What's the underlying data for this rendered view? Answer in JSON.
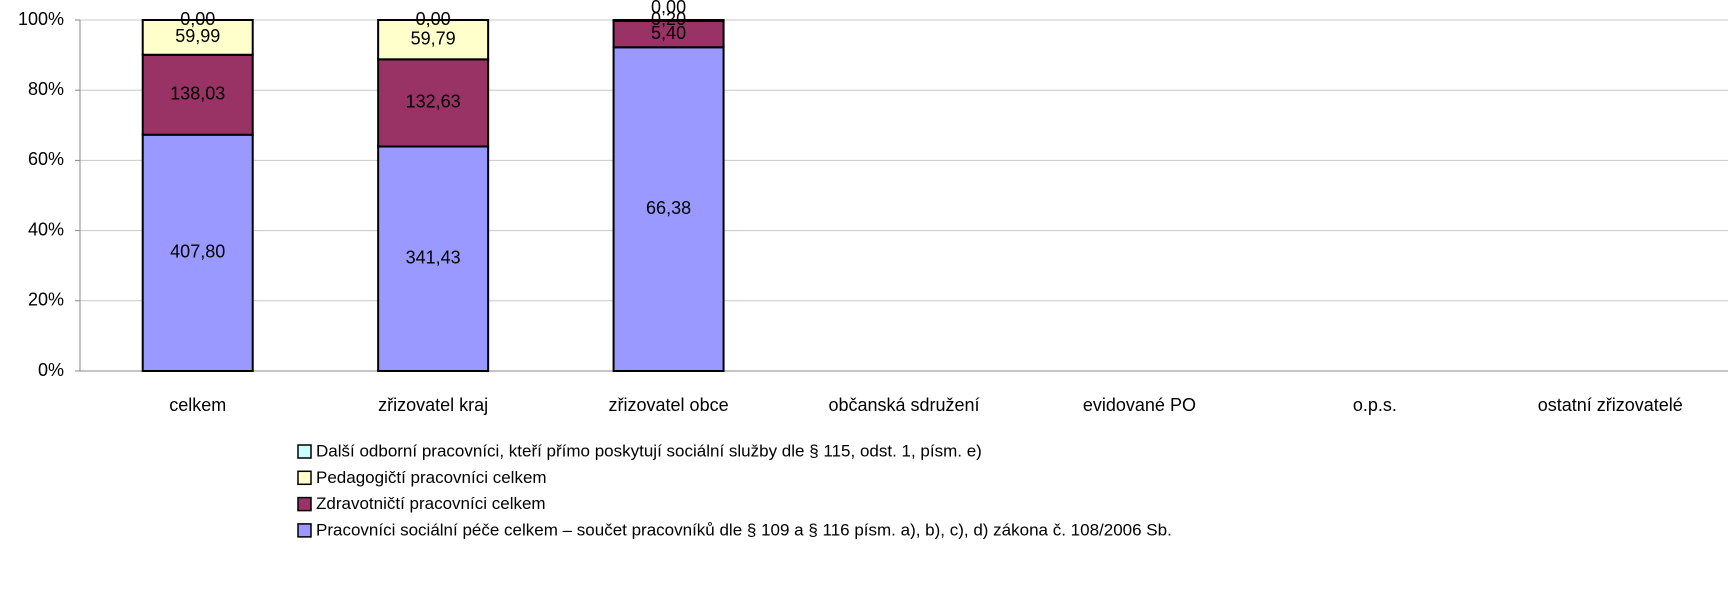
{
  "chart_data": {
    "type": "bar",
    "stacking": "percent",
    "categories": [
      "celkem",
      "zřizovatel kraj",
      "zřizovatel obce",
      "občanská sdružení",
      "evidované PO",
      "o.p.s.",
      "ostatní zřizovatelé"
    ],
    "series": [
      {
        "name": "Pracovníci sociální péče celkem – součet pracovníků dle § 109 a § 116 písm. a), b), c), d) zákona č. 108/2006 Sb.",
        "color": "#9999ff",
        "values": [
          407.8,
          341.43,
          66.38,
          null,
          null,
          null,
          null
        ],
        "value_labels": [
          "407,80",
          "341,43",
          "66,38",
          null,
          null,
          null,
          null
        ]
      },
      {
        "name": "Zdravotničtí pracovníci celkem",
        "color": "#993366",
        "values": [
          138.03,
          132.63,
          5.4,
          null,
          null,
          null,
          null
        ],
        "value_labels": [
          "138,03",
          "132,63",
          "5,40",
          null,
          null,
          null,
          null
        ]
      },
      {
        "name": "Pedagogičtí pracovníci celkem",
        "color": "#ffffcc",
        "values": [
          59.99,
          59.79,
          0.2,
          null,
          null,
          null,
          null
        ],
        "value_labels": [
          "59,99",
          "59,79",
          "0,20",
          null,
          null,
          null,
          null
        ]
      },
      {
        "name": "Další odborní pracovníci, kteří přímo poskytují sociální služby dle § 115, odst. 1, písm. e)",
        "color": "#ccffff",
        "values": [
          0.0,
          0.0,
          0.0,
          null,
          null,
          null,
          null
        ],
        "value_labels": [
          "0,00",
          "0,00",
          "0,00",
          null,
          null,
          null,
          null
        ]
      }
    ],
    "ylim": [
      0,
      100
    ],
    "yticks": [
      {
        "value": 0,
        "label": "0%"
      },
      {
        "value": 20,
        "label": "20%"
      },
      {
        "value": 40,
        "label": "40%"
      },
      {
        "value": 60,
        "label": "60%"
      },
      {
        "value": 80,
        "label": "80%"
      },
      {
        "value": 100,
        "label": "100%"
      }
    ],
    "grid": true
  }
}
